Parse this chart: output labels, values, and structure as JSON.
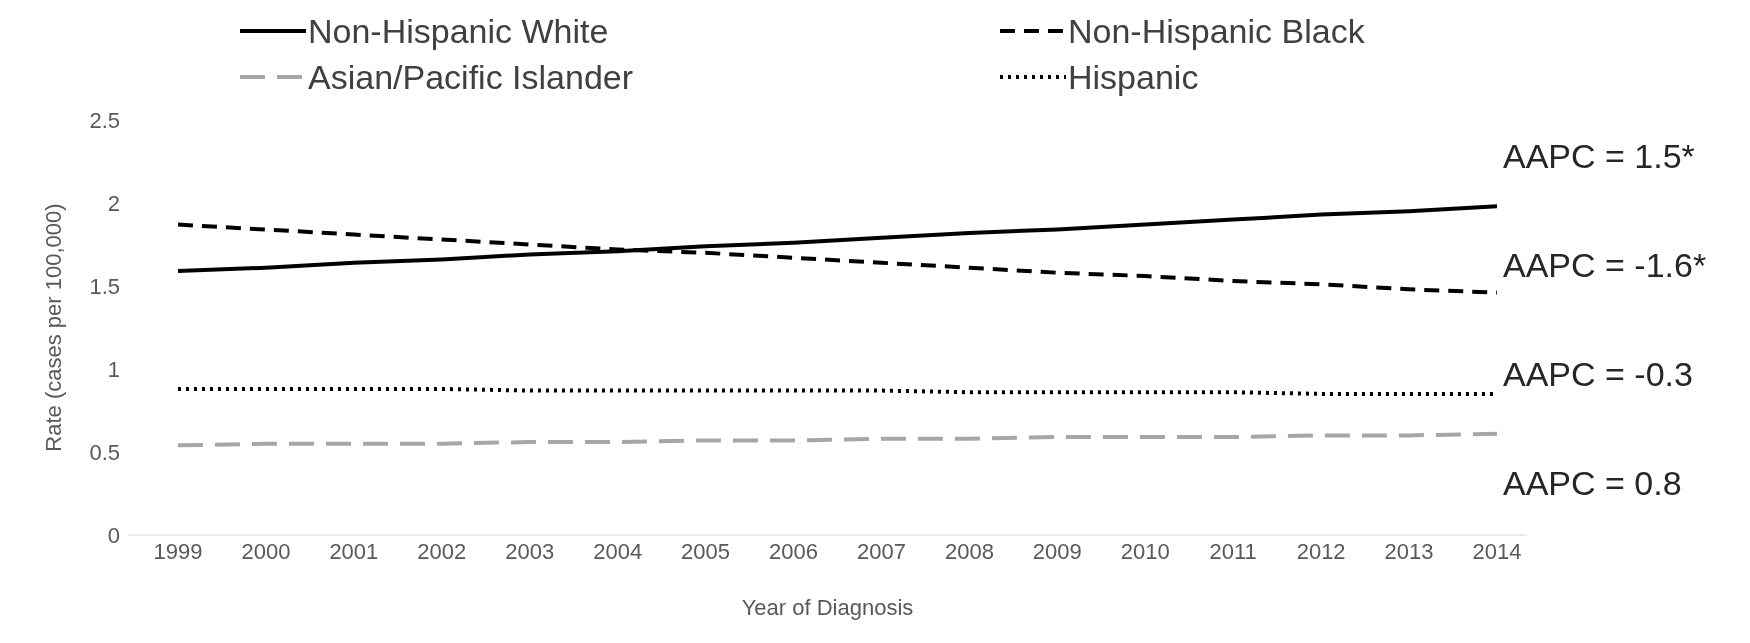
{
  "chart_data": {
    "type": "line",
    "xlabel": "Year of Diagnosis",
    "ylabel": "Rate (cases per 100,000)",
    "categories": [
      "1999",
      "2000",
      "2001",
      "2002",
      "2003",
      "2004",
      "2005",
      "2006",
      "2007",
      "2008",
      "2009",
      "2010",
      "2011",
      "2012",
      "2013",
      "2014"
    ],
    "series": [
      {
        "name": "Non-Hispanic White",
        "color": "#000000",
        "line_style": "solid",
        "values": [
          1.59,
          1.61,
          1.64,
          1.66,
          1.69,
          1.71,
          1.74,
          1.76,
          1.79,
          1.82,
          1.84,
          1.87,
          1.9,
          1.93,
          1.95,
          1.98
        ]
      },
      {
        "name": "Non-Hispanic Black",
        "color": "#000000",
        "line_style": "dashed",
        "values": [
          1.87,
          1.84,
          1.81,
          1.78,
          1.75,
          1.72,
          1.7,
          1.67,
          1.64,
          1.61,
          1.58,
          1.56,
          1.53,
          1.51,
          1.48,
          1.46
        ]
      },
      {
        "name": "Asian/Pacific Islander",
        "color": "#a6a6a6",
        "line_style": "dashed",
        "values": [
          0.54,
          0.55,
          0.55,
          0.55,
          0.56,
          0.56,
          0.57,
          0.57,
          0.58,
          0.58,
          0.59,
          0.59,
          0.59,
          0.6,
          0.6,
          0.61
        ]
      },
      {
        "name": "Hispanic",
        "color": "#000000",
        "line_style": "dotted",
        "values": [
          0.88,
          0.88,
          0.88,
          0.88,
          0.87,
          0.87,
          0.87,
          0.87,
          0.87,
          0.86,
          0.86,
          0.86,
          0.86,
          0.85,
          0.85,
          0.85
        ]
      }
    ],
    "annotations": [
      "AAPC = 1.5*",
      "AAPC = -1.6*",
      "AAPC = -0.3",
      "AAPC = 0.8"
    ],
    "ylim": [
      0,
      2.5
    ],
    "yticks": [
      0,
      0.5,
      1,
      1.5,
      2,
      2.5
    ],
    "grid": false,
    "legend": "top",
    "marker": "none"
  }
}
